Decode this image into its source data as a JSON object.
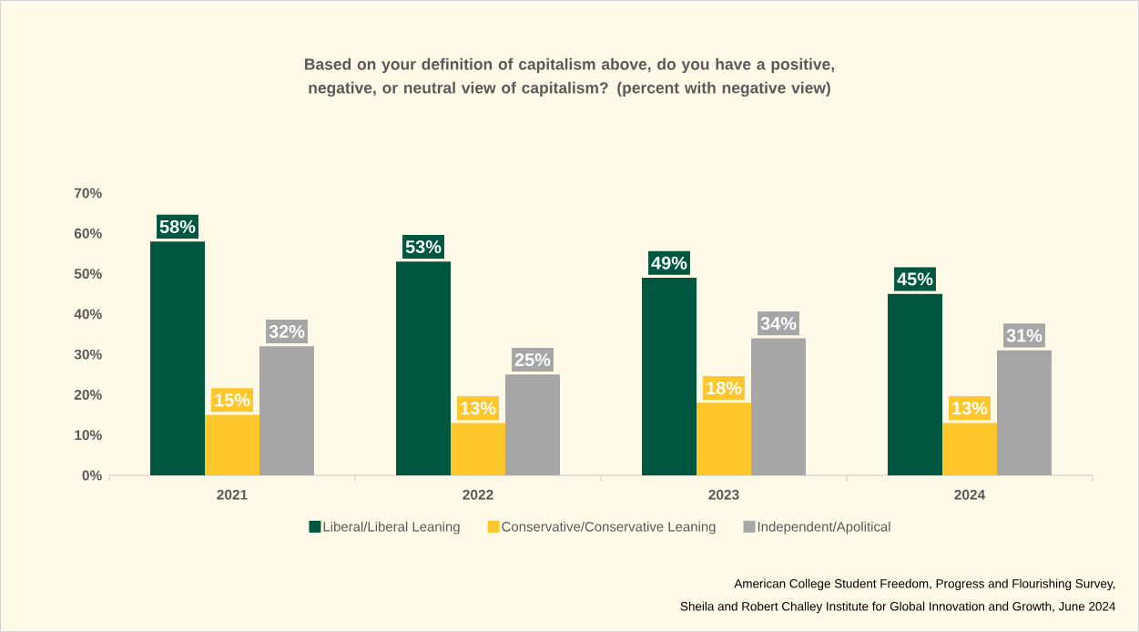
{
  "chart_data": {
    "type": "bar",
    "title": "Based on your definition of capitalism above, do you have a positive, negative, or neutral view of capitalism? (percent with negative view)",
    "categories": [
      "2021",
      "2022",
      "2023",
      "2024"
    ],
    "series": [
      {
        "name": "Liberal/Liberal Leaning",
        "color": "#00573f",
        "values": [
          58,
          53,
          49,
          45
        ],
        "value_labels": [
          "58%",
          "53%",
          "49%",
          "45%"
        ]
      },
      {
        "name": "Conservative/Conservative Leaning",
        "color": "#ffc72c",
        "values": [
          15,
          13,
          18,
          13
        ],
        "value_labels": [
          "15%",
          "13%",
          "18%",
          "13%"
        ]
      },
      {
        "name": "Independent/Apolitical",
        "color": "#a6a6a6",
        "values": [
          32,
          25,
          34,
          31
        ],
        "value_labels": [
          "32%",
          "25%",
          "34%",
          "31%"
        ]
      }
    ],
    "ylim": [
      0,
      70
    ],
    "yticks": [
      {
        "value": 0,
        "label": "0%"
      },
      {
        "value": 10,
        "label": "10%"
      },
      {
        "value": 20,
        "label": "20%"
      },
      {
        "value": 30,
        "label": "30%"
      },
      {
        "value": 40,
        "label": "40%"
      },
      {
        "value": 50,
        "label": "50%"
      },
      {
        "value": 60,
        "label": "60%"
      },
      {
        "value": 70,
        "label": "70%"
      }
    ],
    "grid": false,
    "legend": "bottom",
    "annotations": [
      "American College Student Freedom, Progress and Flourishing Survey,",
      "Sheila and Robert Challey Institute for Global Innovation and Growth, June 2024"
    ]
  }
}
